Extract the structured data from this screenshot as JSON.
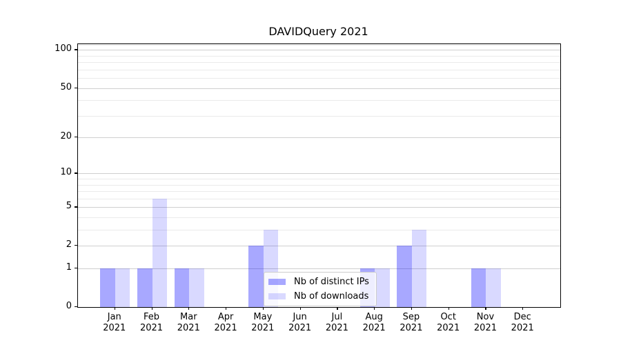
{
  "chart_data": {
    "type": "bar",
    "title": "DAVIDQuery 2021",
    "year_label": "2021",
    "categories": [
      "Jan",
      "Feb",
      "Mar",
      "Apr",
      "May",
      "Jun",
      "Jul",
      "Aug",
      "Sep",
      "Oct",
      "Nov",
      "Dec"
    ],
    "series": [
      {
        "name": "Nb of distinct IPs",
        "color": "rgba(0,0,255,0.34)",
        "values": [
          1,
          1,
          1,
          0,
          2,
          0,
          0,
          1,
          2,
          0,
          1,
          0
        ]
      },
      {
        "name": "Nb of downloads",
        "color": "rgba(0,0,255,0.15)",
        "values": [
          1,
          6,
          1,
          0,
          3,
          0,
          0,
          1,
          3,
          0,
          1,
          0
        ]
      }
    ],
    "y_scale": "log(1+x)",
    "ylim": [
      0,
      111
    ],
    "y_ticks": [
      0,
      1,
      2,
      5,
      10,
      20,
      50,
      100
    ],
    "y_grid_major": [
      1,
      2,
      5,
      10,
      20,
      50,
      100
    ],
    "y_grid_minor": [
      3,
      4,
      6,
      7,
      8,
      9,
      30,
      40,
      60,
      70,
      80,
      90,
      110
    ],
    "grid": "on",
    "legend_position": "inside-bottom-center",
    "colors": {
      "grid_major": "#cfcfcf",
      "grid_minor": "#eaeaea",
      "axis": "#000000"
    }
  }
}
